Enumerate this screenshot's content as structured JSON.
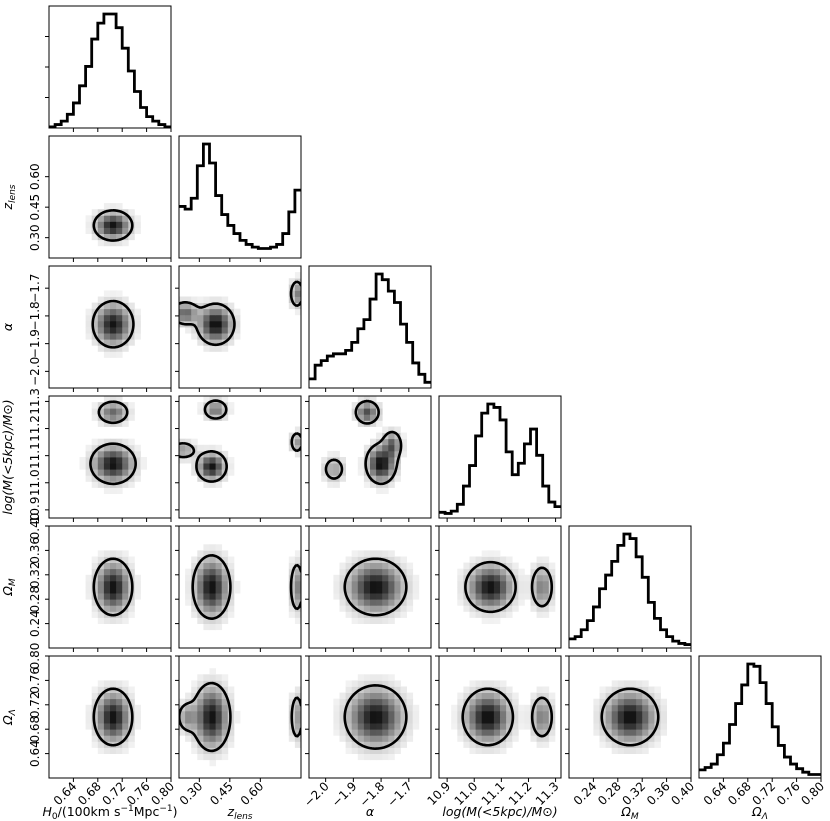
{
  "chart_data": {
    "type": "corner",
    "parameters": [
      {
        "key": "H0",
        "label": "H₀/(100km s⁻¹Mpc⁻¹)",
        "range": [
          0.6,
          0.8
        ],
        "ticks": [
          "0.64",
          "0.68",
          "0.72",
          "0.76",
          "0.80"
        ],
        "tick_values": [
          0.64,
          0.68,
          0.72,
          0.76,
          0.8
        ]
      },
      {
        "key": "zlens",
        "label": "z_lens",
        "range": [
          0.2,
          0.8
        ],
        "ticks": [
          "0.30",
          "0.45",
          "0.60"
        ],
        "tick_values": [
          0.3,
          0.45,
          0.6
        ]
      },
      {
        "key": "alpha",
        "label": "α",
        "range": [
          -2.06,
          -1.62
        ],
        "ticks": [
          "−2.0",
          "−1.9",
          "−1.8",
          "−1.7"
        ],
        "tick_values": [
          -2.0,
          -1.9,
          -1.8,
          -1.7
        ]
      },
      {
        "key": "logM",
        "label": "log(M(<5kpc)/M⊙)",
        "range": [
          10.87,
          11.32
        ],
        "ticks": [
          "10.9",
          "11.0",
          "11.1",
          "11.2",
          "11.3"
        ],
        "tick_values": [
          10.9,
          11.0,
          11.1,
          11.2,
          11.3
        ]
      },
      {
        "key": "OmegaM",
        "label": "Ω_M",
        "range": [
          0.2,
          0.4
        ],
        "ticks": [
          "0.24",
          "0.28",
          "0.32",
          "0.36",
          "0.40"
        ],
        "tick_values": [
          0.24,
          0.28,
          0.32,
          0.36,
          0.4
        ]
      },
      {
        "key": "OmegaL",
        "label": "Ω_Λ",
        "range": [
          0.6,
          0.8
        ],
        "ticks": [
          "0.64",
          "0.68",
          "0.72",
          "0.76",
          "0.80"
        ],
        "tick_values": [
          0.64,
          0.68,
          0.72,
          0.76,
          0.8
        ]
      }
    ],
    "histograms": [
      {
        "param": "H0",
        "values": [
          1,
          3,
          6,
          12,
          22,
          37,
          54,
          78,
          92,
          100,
          100,
          88,
          70,
          50,
          32,
          18,
          10,
          6,
          3,
          1
        ]
      },
      {
        "param": "zlens",
        "values": [
          38,
          36,
          44,
          68,
          84,
          70,
          46,
          32,
          24,
          18,
          13,
          10,
          8,
          7,
          7,
          8,
          10,
          18,
          34,
          50
        ]
      },
      {
        "param": "alpha",
        "values": [
          8,
          20,
          24,
          28,
          30,
          30,
          33,
          40,
          52,
          60,
          78,
          100,
          95,
          85,
          75,
          56,
          40,
          22,
          12,
          5
        ]
      },
      {
        "param": "logM",
        "values": [
          5,
          4,
          6,
          12,
          28,
          46,
          72,
          92,
          100,
          97,
          86,
          58,
          38,
          48,
          65,
          78,
          55,
          28,
          14,
          10
        ]
      },
      {
        "param": "OmegaM",
        "values": [
          8,
          10,
          16,
          24,
          36,
          52,
          64,
          76,
          90,
          100,
          96,
          80,
          62,
          40,
          26,
          16,
          10,
          6,
          4,
          3
        ]
      },
      {
        "param": "OmegaL",
        "values": [
          7,
          9,
          12,
          20,
          30,
          46,
          64,
          80,
          98,
          96,
          82,
          64,
          44,
          28,
          18,
          12,
          8,
          5,
          3,
          3
        ]
      }
    ],
    "joint_2d": [
      {
        "x": "H0",
        "y": "zlens",
        "modes": [
          {
            "x": 0.705,
            "y": 0.36,
            "sx": 0.017,
            "sy": 0.04,
            "w": 1.0
          }
        ]
      },
      {
        "x": "H0",
        "y": "alpha",
        "modes": [
          {
            "x": 0.705,
            "y": -1.83,
            "sx": 0.018,
            "sy": 0.045,
            "w": 1.0
          }
        ]
      },
      {
        "x": "zlens",
        "y": "alpha",
        "modes": [
          {
            "x": 0.38,
            "y": -1.83,
            "sx": 0.05,
            "sy": 0.04,
            "w": 1.0
          },
          {
            "x": 0.23,
            "y": -1.79,
            "sx": 0.04,
            "sy": 0.025,
            "w": 0.6
          },
          {
            "x": 0.78,
            "y": -1.72,
            "sx": 0.02,
            "sy": 0.03,
            "w": 0.5
          }
        ]
      },
      {
        "x": "H0",
        "y": "logM",
        "modes": [
          {
            "x": 0.705,
            "y": 11.07,
            "sx": 0.02,
            "sy": 0.04,
            "w": 1.0
          },
          {
            "x": 0.705,
            "y": 11.26,
            "sx": 0.015,
            "sy": 0.025,
            "w": 0.6
          }
        ]
      },
      {
        "x": "zlens",
        "y": "logM",
        "modes": [
          {
            "x": 0.36,
            "y": 11.06,
            "sx": 0.04,
            "sy": 0.03,
            "w": 1.0
          },
          {
            "x": 0.38,
            "y": 11.27,
            "sx": 0.035,
            "sy": 0.022,
            "w": 0.55
          },
          {
            "x": 0.22,
            "y": 11.12,
            "sx": 0.04,
            "sy": 0.02,
            "w": 0.4
          },
          {
            "x": 0.78,
            "y": 11.15,
            "sx": 0.02,
            "sy": 0.025,
            "w": 0.4
          }
        ]
      },
      {
        "x": "alpha",
        "y": "logM",
        "modes": [
          {
            "x": -1.8,
            "y": 11.07,
            "sx": 0.03,
            "sy": 0.04,
            "w": 1.0
          },
          {
            "x": -1.85,
            "y": 11.26,
            "sx": 0.025,
            "sy": 0.025,
            "w": 0.7
          },
          {
            "x": -1.76,
            "y": 11.14,
            "sx": 0.02,
            "sy": 0.03,
            "w": 0.6
          },
          {
            "x": -1.97,
            "y": 11.05,
            "sx": 0.025,
            "sy": 0.03,
            "w": 0.35
          }
        ]
      },
      {
        "x": "H0",
        "y": "OmegaM",
        "modes": [
          {
            "x": 0.705,
            "y": 0.3,
            "sx": 0.017,
            "sy": 0.025,
            "w": 1.0
          }
        ]
      },
      {
        "x": "zlens",
        "y": "OmegaM",
        "modes": [
          {
            "x": 0.36,
            "y": 0.3,
            "sx": 0.05,
            "sy": 0.028,
            "w": 1.0
          },
          {
            "x": 0.78,
            "y": 0.3,
            "sx": 0.02,
            "sy": 0.025,
            "w": 0.5
          }
        ]
      },
      {
        "x": "alpha",
        "y": "OmegaM",
        "modes": [
          {
            "x": -1.82,
            "y": 0.3,
            "sx": 0.06,
            "sy": 0.025,
            "w": 1.0
          }
        ]
      },
      {
        "x": "logM",
        "y": "OmegaM",
        "modes": [
          {
            "x": 11.06,
            "y": 0.3,
            "sx": 0.05,
            "sy": 0.022,
            "w": 1.0
          },
          {
            "x": 11.25,
            "y": 0.3,
            "sx": 0.025,
            "sy": 0.022,
            "w": 0.5
          }
        ]
      },
      {
        "x": "H0",
        "y": "OmegaL",
        "modes": [
          {
            "x": 0.705,
            "y": 0.7,
            "sx": 0.017,
            "sy": 0.025,
            "w": 1.0
          }
        ]
      },
      {
        "x": "zlens",
        "y": "OmegaL",
        "modes": [
          {
            "x": 0.36,
            "y": 0.7,
            "sx": 0.05,
            "sy": 0.03,
            "w": 1.0
          },
          {
            "x": 0.24,
            "y": 0.7,
            "sx": 0.03,
            "sy": 0.015,
            "w": 0.4
          },
          {
            "x": 0.78,
            "y": 0.7,
            "sx": 0.02,
            "sy": 0.025,
            "w": 0.4
          }
        ]
      },
      {
        "x": "alpha",
        "y": "OmegaL",
        "modes": [
          {
            "x": -1.82,
            "y": 0.7,
            "sx": 0.06,
            "sy": 0.028,
            "w": 1.0
          }
        ]
      },
      {
        "x": "logM",
        "y": "OmegaL",
        "modes": [
          {
            "x": 11.05,
            "y": 0.7,
            "sx": 0.05,
            "sy": 0.025,
            "w": 1.0
          },
          {
            "x": 11.25,
            "y": 0.7,
            "sx": 0.025,
            "sy": 0.022,
            "w": 0.5
          }
        ]
      },
      {
        "x": "OmegaM",
        "y": "OmegaL",
        "modes": [
          {
            "x": 0.3,
            "y": 0.7,
            "sx": 0.025,
            "sy": 0.025,
            "w": 1.0
          }
        ]
      }
    ],
    "grid": false,
    "legend": "none"
  }
}
